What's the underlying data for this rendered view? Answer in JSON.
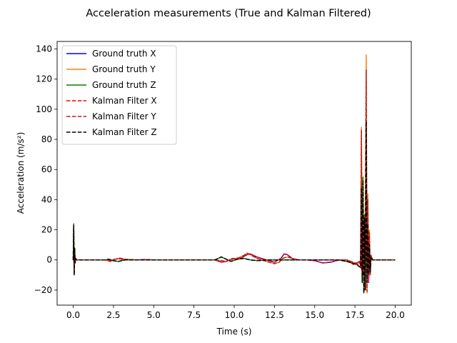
{
  "chart_data": {
    "type": "line",
    "title": "Acceleration measurements (True and Kalman Filtered)",
    "xlabel": "Time (s)",
    "ylabel": "Acceleration (m/s²)",
    "xlim": [
      -1.0,
      21.0
    ],
    "ylim": [
      -30,
      145
    ],
    "xticks": [
      0.0,
      2.5,
      5.0,
      7.5,
      10.0,
      12.5,
      15.0,
      17.5,
      20.0
    ],
    "xtick_labels": [
      "0.0",
      "2.5",
      "5.0",
      "7.5",
      "10.0",
      "12.5",
      "15.0",
      "17.5",
      "20.0"
    ],
    "yticks": [
      -20,
      0,
      20,
      40,
      60,
      80,
      100,
      120,
      140
    ],
    "ytick_labels": [
      "−20",
      "0",
      "20",
      "40",
      "60",
      "80",
      "100",
      "120",
      "140"
    ],
    "grid": false,
    "legend_position": "top-left",
    "series": [
      {
        "name": "Ground truth X",
        "color": "#0000ff",
        "dash": "solid",
        "x": [
          0,
          0.03,
          0.06,
          0.09,
          0.12,
          0.15,
          0.2,
          2.0,
          2.3,
          2.6,
          2.9,
          3.2,
          4.0,
          4.5,
          5.0,
          6.0,
          8.8,
          9.2,
          9.5,
          9.9,
          10.3,
          10.8,
          11.0,
          11.4,
          12.0,
          12.5,
          12.9,
          13.1,
          13.3,
          13.6,
          14.0,
          14.6,
          15.0,
          15.5,
          16.0,
          16.5,
          17.0,
          17.4,
          17.6,
          17.8,
          17.9,
          17.95,
          18.0,
          18.05,
          18.1,
          18.15,
          18.2,
          18.25,
          18.3,
          18.35,
          18.4,
          18.45,
          18.5,
          18.6,
          19.0,
          20.0
        ],
        "y": [
          0,
          3,
          -6,
          2,
          0,
          1,
          0,
          0,
          -0.5,
          0.5,
          0.8,
          0,
          0,
          0.3,
          0,
          0,
          0,
          -1.5,
          -1,
          1,
          0.5,
          3.5,
          4,
          2,
          0,
          -1.5,
          1,
          4,
          3.5,
          1,
          0,
          0,
          -0.5,
          -2,
          -1.5,
          0,
          0,
          -3,
          -2,
          -1,
          -6,
          30,
          2,
          -10,
          20,
          5,
          35,
          -5,
          22,
          -15,
          10,
          -5,
          2,
          0,
          0,
          0
        ]
      },
      {
        "name": "Ground truth Y",
        "color": "#ff7f0e",
        "dash": "solid",
        "x": [
          0,
          0.03,
          0.06,
          0.09,
          0.12,
          0.15,
          0.2,
          2.0,
          2.3,
          2.6,
          2.9,
          3.2,
          4.0,
          4.5,
          5.0,
          6.0,
          8.8,
          9.2,
          9.5,
          9.9,
          10.3,
          10.6,
          10.8,
          11.0,
          11.4,
          12.0,
          12.5,
          12.8,
          13.0,
          13.3,
          13.6,
          14.0,
          15.0,
          16.0,
          17.0,
          17.5,
          17.7,
          17.85,
          17.9,
          17.95,
          18.0,
          18.05,
          18.1,
          18.15,
          18.2,
          18.25,
          18.3,
          18.35,
          18.4,
          18.45,
          18.5,
          18.6,
          19.0,
          20.0
        ],
        "y": [
          0,
          22,
          -8,
          4,
          -2,
          1,
          0,
          0,
          -1,
          0.5,
          1.2,
          0.5,
          0,
          0.2,
          0,
          0,
          0,
          -0.5,
          -1,
          0.5,
          1.5,
          3,
          4.5,
          3.5,
          1,
          -1,
          -2.5,
          -1.5,
          1,
          2,
          1,
          0,
          0,
          0,
          0,
          -2,
          -3,
          -1,
          88,
          2,
          -10,
          30,
          -20,
          40,
          136,
          -22,
          44,
          -10,
          20,
          -10,
          3,
          0,
          0,
          0
        ]
      },
      {
        "name": "Ground truth Z",
        "color": "#008000",
        "dash": "solid",
        "x": [
          0,
          0.03,
          0.06,
          0.09,
          0.12,
          0.15,
          0.2,
          2.0,
          2.2,
          2.5,
          2.8,
          3.2,
          4.0,
          6.0,
          8.8,
          9.0,
          9.2,
          9.5,
          9.8,
          10.2,
          10.6,
          11.0,
          11.5,
          12.0,
          13.0,
          14.0,
          16.5,
          17.0,
          17.3,
          17.6,
          17.85,
          17.9,
          17.95,
          18.0,
          18.05,
          18.1,
          18.15,
          18.2,
          18.25,
          18.3,
          18.35,
          18.4,
          18.45,
          18.5,
          18.6,
          19.0,
          20.0
        ],
        "y": [
          0,
          24,
          -10,
          8,
          -2,
          1,
          0,
          0,
          0.5,
          -0.5,
          -1,
          0,
          0,
          0,
          0,
          1,
          2,
          0.5,
          -1,
          0.5,
          1,
          0,
          -0.5,
          0,
          0,
          0,
          0,
          -1,
          -2,
          -3,
          -5,
          50,
          -15,
          55,
          -22,
          30,
          -20,
          45,
          -15,
          25,
          -10,
          10,
          -8,
          2,
          0,
          0,
          0
        ]
      },
      {
        "name": "Kalman Filter X",
        "color": "#ff0000",
        "dash": "dashed",
        "x": [
          0,
          0.03,
          0.06,
          0.09,
          0.12,
          0.15,
          0.2,
          2.0,
          2.3,
          2.6,
          2.9,
          3.2,
          4.0,
          4.5,
          5.0,
          6.0,
          8.8,
          9.2,
          9.5,
          9.9,
          10.3,
          10.8,
          11.0,
          11.4,
          12.0,
          12.5,
          12.9,
          13.1,
          13.3,
          13.6,
          14.0,
          14.6,
          15.0,
          15.5,
          16.0,
          16.5,
          17.0,
          17.4,
          17.6,
          17.8,
          17.9,
          17.95,
          18.0,
          18.05,
          18.1,
          18.15,
          18.2,
          18.25,
          18.3,
          18.35,
          18.4,
          18.45,
          18.5,
          18.6,
          19.0,
          20.0
        ],
        "y": [
          0,
          3,
          -6,
          2,
          0,
          1,
          0,
          0,
          -0.5,
          0.5,
          0.8,
          0,
          0,
          0.3,
          0,
          0,
          0,
          -1.5,
          -1,
          1,
          0.5,
          3.5,
          4,
          2,
          0,
          -1.5,
          1,
          4,
          3.5,
          1,
          0,
          0,
          -0.5,
          -2,
          -1.5,
          0,
          0,
          -3,
          -2,
          -1,
          -6,
          28,
          2,
          -10,
          18,
          5,
          32,
          -5,
          20,
          -14,
          10,
          -5,
          2,
          0,
          0,
          0
        ]
      },
      {
        "name": "Kalman Filter Y",
        "color": "#b22222",
        "dash": "dashed",
        "x": [
          0,
          0.03,
          0.06,
          0.09,
          0.12,
          0.15,
          0.2,
          2.0,
          2.3,
          2.6,
          2.9,
          3.2,
          4.0,
          4.5,
          5.0,
          6.0,
          8.8,
          9.2,
          9.5,
          9.9,
          10.3,
          10.6,
          10.8,
          11.0,
          11.4,
          12.0,
          12.5,
          12.8,
          13.0,
          13.3,
          13.6,
          14.0,
          15.0,
          16.0,
          17.0,
          17.5,
          17.7,
          17.85,
          17.9,
          17.95,
          18.0,
          18.05,
          18.1,
          18.15,
          18.2,
          18.25,
          18.3,
          18.35,
          18.4,
          18.45,
          18.5,
          18.6,
          19.0,
          20.0
        ],
        "y": [
          0,
          21,
          -8,
          4,
          -2,
          1,
          0,
          0,
          -1,
          0.5,
          1.2,
          0.5,
          0,
          0.2,
          0,
          0,
          0,
          -0.5,
          -1,
          0.5,
          1.5,
          3,
          4.5,
          3.5,
          1,
          -1,
          -2.5,
          -1.5,
          1,
          2,
          1,
          0,
          0,
          0,
          0,
          -2,
          -3,
          -1,
          86,
          2,
          -10,
          28,
          -20,
          38,
          126,
          -21,
          40,
          -10,
          18,
          -10,
          3,
          0,
          0,
          0
        ]
      },
      {
        "name": "Kalman Filter Z",
        "color": "#000000",
        "dash": "dashed",
        "x": [
          0,
          0.03,
          0.06,
          0.09,
          0.12,
          0.15,
          0.2,
          2.0,
          2.2,
          2.5,
          2.8,
          3.2,
          4.0,
          6.0,
          8.8,
          9.0,
          9.2,
          9.5,
          9.8,
          10.2,
          10.6,
          11.0,
          11.5,
          12.0,
          13.0,
          14.0,
          16.5,
          17.0,
          17.3,
          17.6,
          17.85,
          17.9,
          17.95,
          18.0,
          18.05,
          18.1,
          18.15,
          18.2,
          18.25,
          18.3,
          18.35,
          18.4,
          18.45,
          18.5,
          18.6,
          19.0,
          20.0
        ],
        "y": [
          0,
          23,
          -10,
          8,
          -2,
          1,
          0,
          0,
          0.5,
          -0.5,
          -1,
          0,
          0,
          0,
          0,
          1,
          2,
          0.5,
          -1,
          0.5,
          1,
          0,
          -0.5,
          0,
          0,
          0,
          0,
          -1,
          -2,
          -3,
          -5,
          48,
          -15,
          53,
          -22,
          28,
          -20,
          92,
          -15,
          24,
          -10,
          10,
          -8,
          2,
          0,
          0,
          0
        ]
      }
    ]
  }
}
